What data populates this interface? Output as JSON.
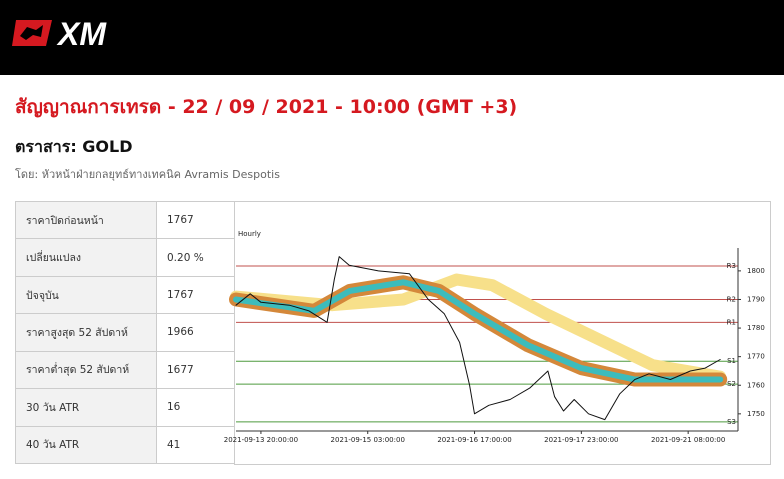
{
  "header": {
    "logo": "XM"
  },
  "title": "สัญญาณการเทรด - 22 / 09 / 2021 - 10:00 (GMT +3)",
  "instrument": "ตราสาร: GOLD",
  "author": "โดย: หัวหน้าฝ่ายกลยุทธ์ทางเทคนิค Avramis Despotis",
  "table": {
    "rows": [
      [
        "ราคาปิดก่อนหน้า",
        "1767"
      ],
      [
        "เปลี่ยนแปลง",
        "0.20 %"
      ],
      [
        "ปัจจุบัน",
        "1767"
      ],
      [
        "ราคาสูงสุด 52 สัปดาห์",
        "1966"
      ],
      [
        "ราคาต่ำสุด 52 สัปดาห์",
        "1677"
      ],
      [
        "30 วัน ATR",
        "16"
      ],
      [
        "40 วัน ATR",
        "41"
      ]
    ]
  },
  "chart_data": {
    "type": "line",
    "subtitle": "Hourly",
    "xlim": [
      -7,
      134
    ],
    "xticks": [
      {
        "value": 0,
        "label": "2021-09-13 20:00:00"
      },
      {
        "value": 30,
        "label": "2021-09-15 03:00:00"
      },
      {
        "value": 60,
        "label": "2021-09-16 17:00:00"
      },
      {
        "value": 90,
        "label": "2021-09-17 23:00:00"
      },
      {
        "value": 120,
        "label": "2021-09-21 08:00:00"
      }
    ],
    "ylim": [
      1744,
      1808
    ],
    "yticks": [
      1750,
      1760,
      1770,
      1780,
      1790,
      1800
    ],
    "levels": [
      {
        "label": "R3",
        "value": 1801.7,
        "color": "#c0504d"
      },
      {
        "label": "R2",
        "value": 1790,
        "color": "#c0504d"
      },
      {
        "label": "R1",
        "value": 1782,
        "color": "#c0504d"
      },
      {
        "label": "S1",
        "value": 1768.4,
        "color": "#4e9a3e"
      },
      {
        "label": "S2",
        "value": 1760.4,
        "color": "#4e9a3e"
      },
      {
        "label": "S3",
        "value": 1747.2,
        "color": "#4e9a3e"
      }
    ],
    "series": [
      {
        "color": "#f7e08a",
        "x": [
          -7,
          20,
          40,
          55,
          65,
          80,
          95,
          110,
          129
        ],
        "values": [
          1791,
          1788,
          1790,
          1797,
          1795,
          1785,
          1776,
          1767,
          1763
        ]
      },
      {
        "color": "#d4883a",
        "x": [
          -7,
          15,
          25,
          40,
          50,
          60,
          75,
          90,
          105,
          129
        ],
        "values": [
          1790,
          1786,
          1793,
          1796,
          1793,
          1785,
          1774,
          1766,
          1762,
          1762
        ]
      },
      {
        "color": "#3cbcbc",
        "x": [
          -7,
          15,
          25,
          40,
          50,
          60,
          75,
          90,
          105,
          129
        ],
        "values": [
          1790,
          1786,
          1793,
          1796,
          1793,
          1785,
          1774,
          1766,
          1762,
          1762
        ]
      },
      {
        "color": "#111111",
        "x": [
          -7,
          -3,
          0,
          8,
          13.5,
          18.6,
          20.6,
          22,
          24.8,
          33,
          41.7,
          47,
          51.5,
          55.8,
          58.6,
          60,
          64,
          70,
          75.5,
          80.6,
          82.5,
          85,
          88,
          92,
          96.6,
          100.8,
          105,
          109,
          115,
          120.6,
          124.8,
          129
        ],
        "values": [
          1788,
          1792,
          1789,
          1788,
          1786,
          1782,
          1797,
          1805,
          1802,
          1800,
          1799,
          1790,
          1785,
          1775,
          1760,
          1750,
          1753,
          1755,
          1759,
          1765,
          1756,
          1751,
          1755,
          1750,
          1748,
          1757,
          1762,
          1764,
          1762,
          1765,
          1766,
          1769
        ]
      }
    ]
  }
}
